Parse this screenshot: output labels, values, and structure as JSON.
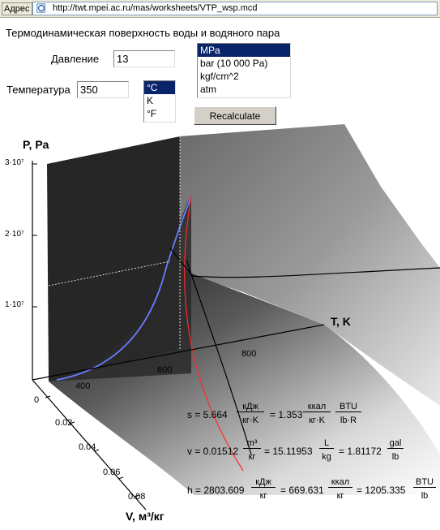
{
  "browser": {
    "address_label": "Адрес",
    "url": "http://twt.mpei.ac.ru/mas/worksheets/VTP_wsp.mcd"
  },
  "page_title": "Термодинамическая поверхность воды и водяного пара",
  "pressure": {
    "label": "Давление",
    "value": "13",
    "units": [
      "MPa",
      "bar (10 000 Pa)",
      "kgf/cm^2",
      "atm"
    ],
    "selected": "MPa"
  },
  "temperature": {
    "label": "Температура",
    "value": "350",
    "units": [
      "°C",
      "K",
      "°F"
    ],
    "selected": "°C"
  },
  "recalculate_label": "Recalculate",
  "plot": {
    "p_axis_label": "P, Pa",
    "t_axis_label": "T, K",
    "v_axis_label": "V, м³/кг",
    "p_ticks": [
      "1·10⁷",
      "2·10⁷",
      "3·10⁷"
    ],
    "t_ticks": [
      "400",
      "600",
      "800"
    ],
    "v_ticks": [
      "0",
      "0.02",
      "0.04",
      "0.06",
      "0.08"
    ]
  },
  "results": {
    "s_lhs": "s = 5.664",
    "s_u1_num": "кДж",
    "s_u1_den": "кг·K",
    "s_eq2": "= 1.353",
    "s_u2_num": "ккал",
    "s_u2_den": "кг·K",
    "s_u3_num": "BTU",
    "s_u3_den": "lb·R",
    "v_lhs": "v = 0.01512",
    "v_u1_num": "m³",
    "v_u1_den": "кг",
    "v_eq2": "= 15.11953",
    "v_u2_num": "L",
    "v_u2_den": "kg",
    "v_eq3": "= 1.81172",
    "v_u3_num": "gal",
    "v_u3_den": "lb",
    "h_lhs": "h = 2803.609",
    "h_u1_num": "кДж",
    "h_u1_den": "кг",
    "h_eq2": "= 669.631",
    "h_u2_num": "ккал",
    "h_u2_den": "кг",
    "h_eq3": "= 1205.335",
    "h_u3_num": "BTU",
    "h_u3_den": "lb"
  }
}
